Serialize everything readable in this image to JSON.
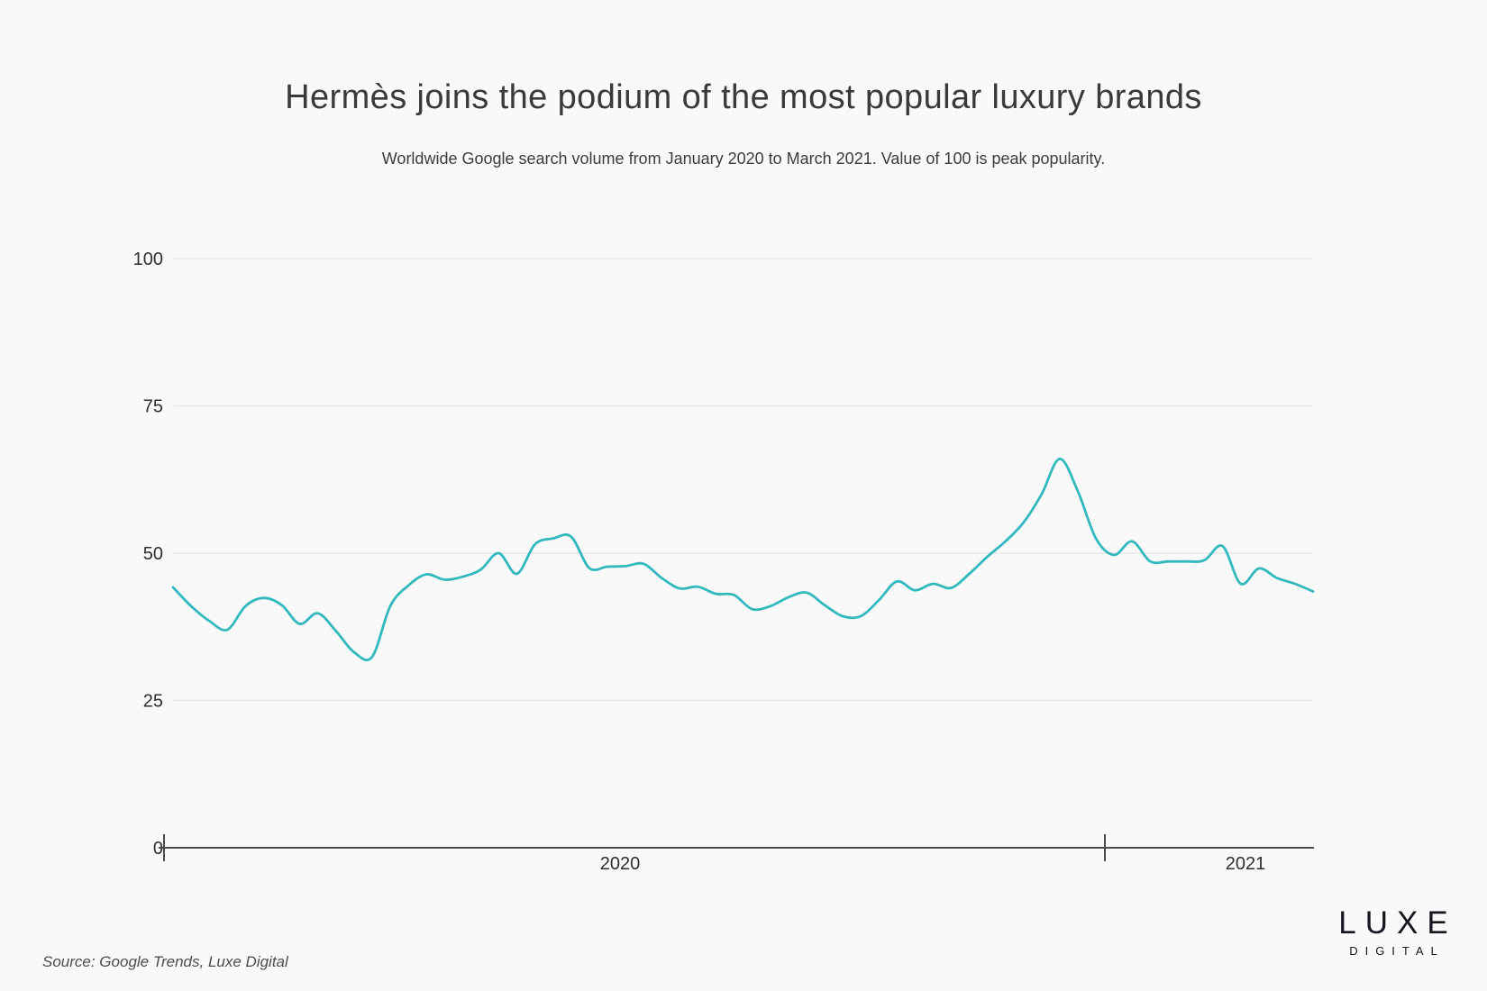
{
  "header": {
    "title": "Hermès joins the podium of the most popular luxury brands",
    "subtitle": "Worldwide Google search volume from January 2020 to March 2021. Value of 100 is peak popularity."
  },
  "chart_data": {
    "type": "line",
    "title": "Hermès joins the podium of the most popular luxury brands",
    "subtitle": "Worldwide Google search volume from January 2020 to March 2021. Value of 100 is peak popularity.",
    "x_unit": "week",
    "x_start": "January 2020",
    "x_end": "March 2021",
    "x_axis_tick_labels": [
      "2020",
      "2021"
    ],
    "y_axis_ticks": [
      0,
      25,
      50,
      75,
      100
    ],
    "ylim": [
      0,
      100
    ],
    "grid": "horizontal",
    "legend_position": "none",
    "series": [
      {
        "name": "Hermès worldwide Google search volume",
        "color": "#31b9be",
        "values": [
          44.2,
          41,
          38.5,
          37,
          41,
          42.4,
          41.2,
          38,
          39.8,
          36.8,
          33.2,
          32.4,
          41,
          44.5,
          46.4,
          45.5,
          46,
          47.2,
          50,
          46.5,
          51.5,
          52.5,
          52.8,
          47.5,
          47.7,
          47.8,
          48.2,
          45.8,
          44,
          44.3,
          43.1,
          42.9,
          40.5,
          41,
          42.5,
          43.3,
          41.2,
          39.3,
          39.3,
          42,
          45.2,
          43.7,
          44.8,
          44.1,
          46.5,
          49.4,
          52,
          55.2,
          60,
          66,
          60.5,
          52.5,
          49.7,
          52,
          48.6,
          48.6,
          48.6,
          48.8,
          51.2,
          44.8,
          47.4,
          45.8,
          44.8,
          43.5
        ]
      }
    ]
  },
  "footer": {
    "source": "Source: Google Trends, Luxe Digital",
    "logo": {
      "line1": "LUXE",
      "line2": "DIGITAL"
    }
  },
  "colors": {
    "background": "#f9f9fa",
    "line": "#31b9be",
    "grid": "#e8e8e8",
    "axis": "#4b4b4b",
    "tick_text": "#2f2f2f",
    "text": "#3a3a3a"
  }
}
